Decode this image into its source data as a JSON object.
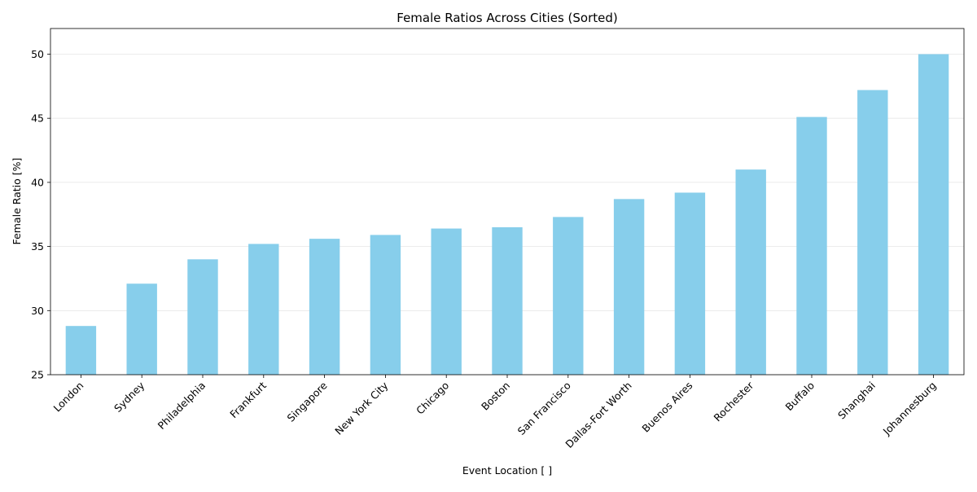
{
  "chart_data": {
    "type": "bar",
    "title": "Female Ratios Across Cities (Sorted)",
    "x_label": "Event Location [ ]",
    "y_label": "Female Ratio [%]",
    "categories": [
      "London",
      "Sydney",
      "Philadelphia",
      "Frankfurt",
      "Singapore",
      "New York City",
      "Chicago",
      "Boston",
      "San Francisco",
      "Dallas-Fort Worth",
      "Buenos Aires",
      "Rochester",
      "Buffalo",
      "Shanghai",
      "Johannesburg"
    ],
    "values": [
      28.8,
      32.1,
      34.0,
      35.2,
      35.6,
      35.9,
      36.4,
      36.5,
      37.3,
      38.7,
      39.2,
      41.0,
      45.1,
      47.2,
      50.0
    ],
    "color": "#87ceeb",
    "ylim": [
      25,
      52
    ],
    "yticks": [
      25,
      30,
      35,
      40,
      45,
      50
    ],
    "grid": true
  }
}
